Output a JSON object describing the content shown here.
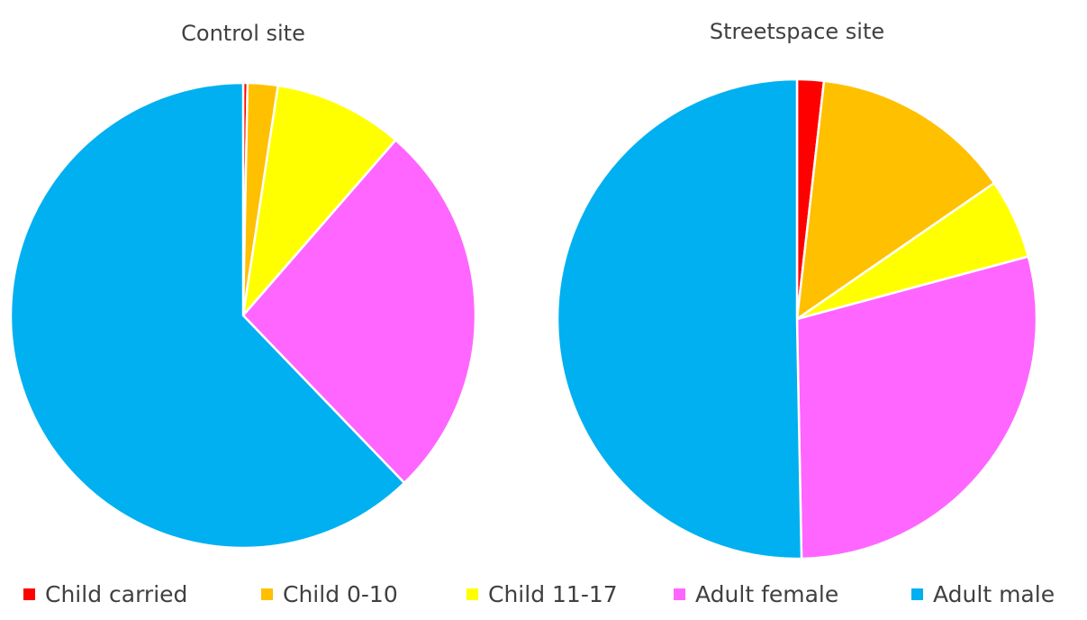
{
  "chart_data": [
    {
      "type": "pie",
      "title": "Control site",
      "categories": [
        "Child carried",
        "Child 0-10",
        "Child 11-17",
        "Adult female",
        "Adult male"
      ],
      "values": [
        0.3,
        2.1,
        9.0,
        26.4,
        62.2
      ],
      "colors": [
        "#ff0000",
        "#ffc000",
        "#ffff00",
        "#ff66ff",
        "#00b0f0"
      ]
    },
    {
      "type": "pie",
      "title": "Streetspace site",
      "categories": [
        "Child carried",
        "Child 0-10",
        "Child 11-17",
        "Adult female",
        "Adult male"
      ],
      "values": [
        1.8,
        13.6,
        5.4,
        28.9,
        50.3
      ],
      "colors": [
        "#ff0000",
        "#ffc000",
        "#ffff00",
        "#ff66ff",
        "#00b0f0"
      ]
    }
  ]
}
